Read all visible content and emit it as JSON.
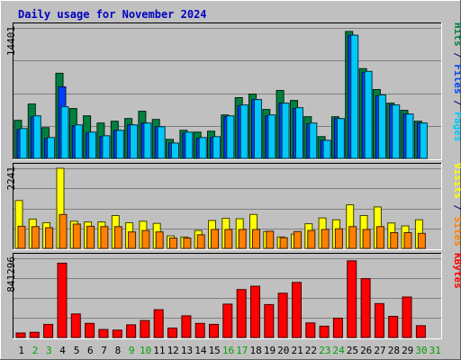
{
  "chart_data": {
    "type": "bar",
    "title": "Daily usage for November 2024",
    "categories": [
      "1",
      "2",
      "3",
      "4",
      "5",
      "6",
      "7",
      "8",
      "9",
      "10",
      "11",
      "12",
      "13",
      "14",
      "15",
      "16",
      "17",
      "18",
      "19",
      "20",
      "21",
      "22",
      "23",
      "24",
      "25",
      "26",
      "27",
      "28",
      "29",
      "30",
      "31"
    ],
    "weekend_days": [
      2,
      3,
      9,
      10,
      16,
      17,
      23,
      24,
      30,
      31
    ],
    "panels": [
      {
        "id": "top",
        "ymax_label": "14401",
        "ylim": [
          0,
          14401
        ],
        "legend": [
          {
            "text": "Pages",
            "color": "#00c8f8"
          },
          {
            "text": " / ",
            "color": "#000080"
          },
          {
            "text": "Files",
            "color": "#0040ff"
          },
          {
            "text": " / ",
            "color": "#000080"
          },
          {
            "text": "Hits",
            "color": "#008040"
          }
        ],
        "series": [
          {
            "name": "Hits",
            "color": "#008040",
            "values": [
              4200,
              6000,
              3400,
              9400,
              5500,
              4700,
              3900,
              4100,
              4400,
              5200,
              4300,
              2100,
              3100,
              2900,
              3000,
              4800,
              6700,
              7100,
              5400,
              7500,
              6400,
              4600,
              2400,
              4600,
              14000,
              9900,
              7600,
              6100,
              5300,
              4100,
              0
            ]
          },
          {
            "name": "Files",
            "color": "#0040ff",
            "values": [
              3200,
              4600,
              2200,
              7900,
              3600,
              2800,
              2400,
              3100,
              3700,
              3900,
              3500,
              1700,
              2800,
              2200,
              2300,
              4600,
              5800,
              6500,
              4700,
              6100,
              5500,
              3800,
              2000,
              4400,
              13600,
              9500,
              6900,
              5900,
              4900,
              3900,
              0
            ]
          },
          {
            "name": "Pages",
            "color": "#00c8f8",
            "values": [
              3300,
              4700,
              2300,
              5700,
              3700,
              2900,
              2500,
              3100,
              3700,
              3900,
              3500,
              1700,
              2900,
              2300,
              2400,
              4700,
              5900,
              6500,
              4800,
              6100,
              5600,
              3900,
              2000,
              4400,
              13600,
              9600,
              7000,
              5900,
              4900,
              3900,
              0
            ]
          }
        ]
      },
      {
        "id": "middle",
        "ymax_label": "2241",
        "ylim": [
          0,
          2241
        ],
        "legend": [
          {
            "text": "Sites",
            "color": "#ff8000"
          },
          {
            "text": " / ",
            "color": "#000080"
          },
          {
            "text": "Visits",
            "color": "#ffff00"
          }
        ],
        "series": [
          {
            "name": "Visits",
            "color": "#ffff00",
            "values": [
              1340,
              820,
              720,
              2241,
              760,
              740,
              740,
              920,
              720,
              760,
              700,
              350,
              320,
              500,
              780,
              840,
              830,
              950,
              470,
              320,
              400,
              690,
              850,
              800,
              1220,
              920,
              1160,
              710,
              630,
              800,
              0
            ]
          },
          {
            "name": "Sites",
            "color": "#ff8000",
            "values": [
              620,
              610,
              580,
              950,
              680,
              620,
              610,
              610,
              460,
              500,
              460,
              290,
              290,
              380,
              530,
              530,
              530,
              530,
              480,
              300,
              470,
              500,
              530,
              550,
              610,
              530,
              610,
              440,
              440,
              420,
              0
            ]
          }
        ]
      },
      {
        "id": "bottom",
        "ymax_label": "841296",
        "ylim": [
          0,
          841296
        ],
        "legend": [
          {
            "text": "KBytes",
            "color": "#ff0000"
          }
        ],
        "series": [
          {
            "name": "KBytes",
            "color": "#ff0000",
            "values": [
              48000,
              55000,
              140000,
              790000,
              250000,
              150000,
              85000,
              78000,
              135000,
              180000,
              295000,
              100000,
              230000,
              150000,
              140000,
              355000,
              510000,
              545000,
              350000,
              470000,
              585000,
              155000,
              120000,
              205000,
              815000,
              625000,
              360000,
              225000,
              430000,
              125000,
              0
            ]
          }
        ]
      }
    ]
  }
}
